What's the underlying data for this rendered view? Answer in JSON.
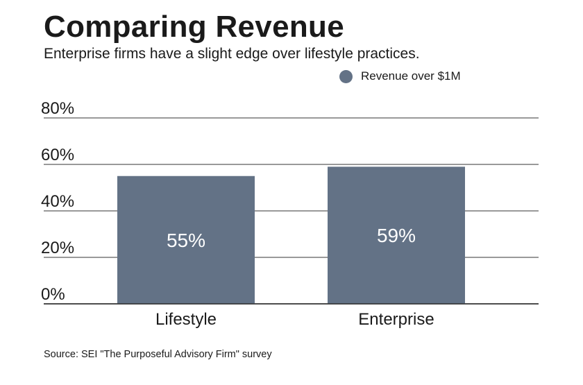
{
  "colors": {
    "bar": "#637286",
    "gridline": "#333333",
    "text": "#1a1a1a",
    "data_label": "#ffffff"
  },
  "chart_data": {
    "type": "bar",
    "title": "Comparing Revenue",
    "subtitle": "Enterprise firms have a slight edge over lifestyle practices.",
    "categories": [
      "Lifestyle",
      "Enterprise"
    ],
    "series": [
      {
        "name": "Revenue over $1M",
        "values": [
          55,
          59
        ],
        "data_labels": [
          "55%",
          "59%"
        ]
      }
    ],
    "ylim": [
      0,
      80
    ],
    "yticks": [
      0,
      20,
      40,
      60,
      80
    ],
    "ytick_labels": [
      "0%",
      "20%",
      "40%",
      "60%",
      "80%"
    ],
    "xlabel": "",
    "ylabel": "",
    "grid": true,
    "legend_position": "top-right",
    "source": "Source: SEI \"The Purposeful Advisory Firm\" survey"
  }
}
